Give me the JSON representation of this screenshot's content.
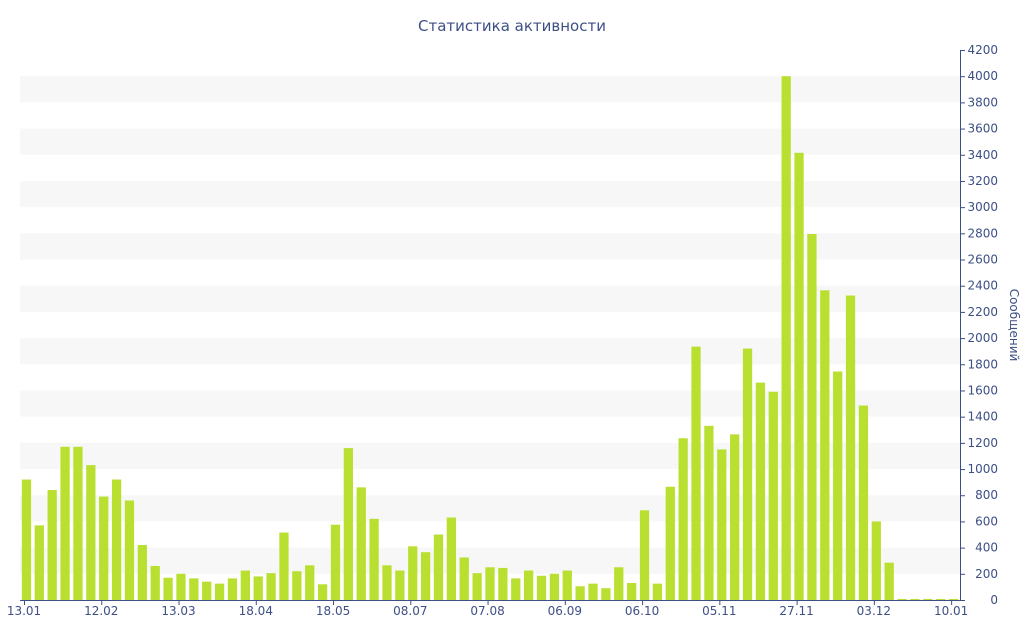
{
  "chart_data": {
    "type": "bar",
    "title": "Статистика активности",
    "xlabel": "",
    "ylabel": "Сообщений",
    "ylim": [
      0,
      4200
    ],
    "y_ticks": [
      0,
      200,
      400,
      600,
      800,
      1000,
      1200,
      1400,
      1600,
      1800,
      2000,
      2200,
      2400,
      2600,
      2800,
      3000,
      3200,
      3400,
      3600,
      3800,
      4000,
      4200
    ],
    "y_axis_position": "right",
    "grid": "alternating horizontal bands",
    "x_tick_labels": [
      {
        "label": "13.01",
        "index": 0
      },
      {
        "label": "12.02",
        "index": 6
      },
      {
        "label": "13.03",
        "index": 12
      },
      {
        "label": "18.04",
        "index": 18
      },
      {
        "label": "18.05",
        "index": 24
      },
      {
        "label": "08.07",
        "index": 30
      },
      {
        "label": "07.08",
        "index": 36
      },
      {
        "label": "06.09",
        "index": 42
      },
      {
        "label": "06.10",
        "index": 48
      },
      {
        "label": "05.11",
        "index": 54
      },
      {
        "label": "27.11",
        "index": 60
      },
      {
        "label": "03.12",
        "index": 66
      },
      {
        "label": "10.01",
        "index": 72
      }
    ],
    "values": [
      920,
      570,
      840,
      1170,
      1170,
      1030,
      790,
      920,
      760,
      420,
      260,
      170,
      200,
      165,
      140,
      125,
      165,
      225,
      180,
      205,
      515,
      220,
      265,
      120,
      575,
      1160,
      860,
      620,
      265,
      225,
      410,
      365,
      500,
      630,
      325,
      205,
      250,
      245,
      165,
      225,
      185,
      200,
      225,
      105,
      125,
      90,
      250,
      130,
      685,
      125,
      865,
      1235,
      1935,
      1330,
      1150,
      1265,
      1920,
      1660,
      1590,
      4000,
      3415,
      2795,
      2365,
      1745,
      2325,
      1485,
      600,
      285,
      8,
      8,
      8,
      8,
      8
    ],
    "bar_color": "#b9e030",
    "legend": "none"
  }
}
